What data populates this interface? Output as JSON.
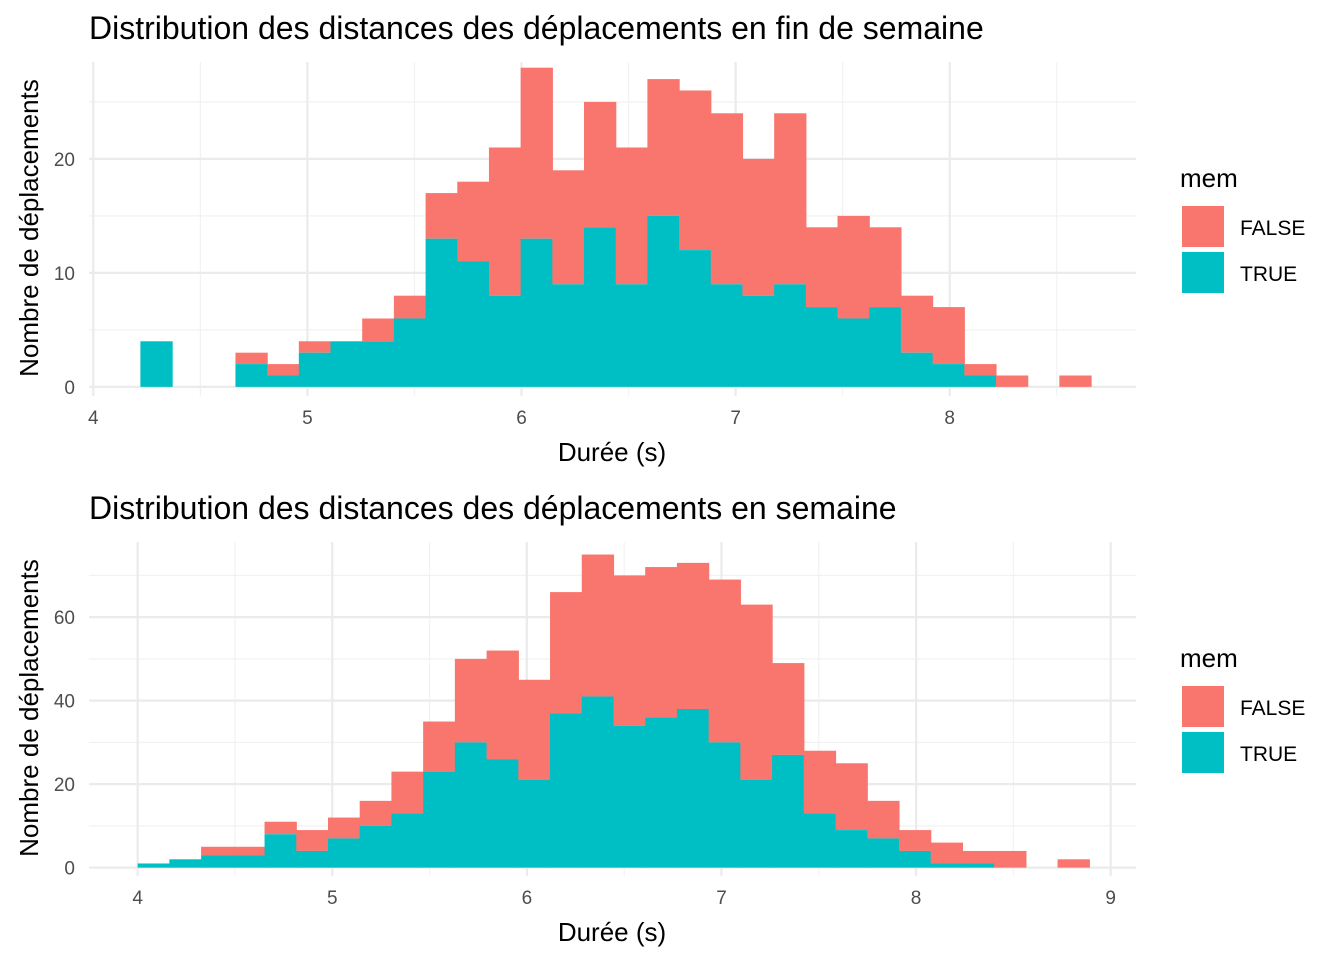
{
  "colors": {
    "FALSE": "#F8766D",
    "TRUE": "#00BFC4"
  },
  "chart_data": [
    {
      "type": "bar",
      "stacking": "stacked-histogram",
      "title": "Distribution des distances des déplacements en fin de semaine",
      "xlabel": "Durée (s)",
      "ylabel": "Nombre de déplacements",
      "xlim": [
        3.98,
        8.87
      ],
      "ylim": [
        -0.8,
        28.5
      ],
      "xticks": [
        "4",
        "5",
        "6",
        "7",
        "8"
      ],
      "xtick_values": [
        4,
        5,
        6,
        7,
        8
      ],
      "yticks": [
        "0",
        "10",
        "20"
      ],
      "ytick_values": [
        0,
        10,
        20
      ],
      "bin_width": 0.148,
      "bin_starts": [
        4.22,
        4.368,
        4.516,
        4.664,
        4.812,
        4.96,
        5.108,
        5.256,
        5.404,
        5.552,
        5.7,
        5.848,
        5.996,
        6.144,
        6.292,
        6.44,
        6.588,
        6.736,
        6.884,
        7.032,
        7.18,
        7.328,
        7.476,
        7.624,
        7.772,
        7.92,
        8.068,
        8.216,
        8.364,
        8.512
      ],
      "legend": {
        "title": "mem",
        "position": "right",
        "entries": [
          "FALSE",
          "TRUE"
        ]
      },
      "series": [
        {
          "name": "FALSE",
          "values": [
            0,
            0,
            0,
            1,
            1,
            1,
            0,
            2,
            2,
            4,
            7,
            13,
            15,
            10,
            11,
            12,
            12,
            14,
            15,
            12,
            15,
            7,
            9,
            7,
            5,
            5,
            1,
            1,
            0,
            1
          ]
        },
        {
          "name": "TRUE",
          "values": [
            4,
            0,
            0,
            2,
            1,
            3,
            4,
            4,
            6,
            13,
            11,
            8,
            13,
            9,
            14,
            9,
            15,
            12,
            9,
            8,
            9,
            7,
            6,
            7,
            3,
            2,
            1,
            0,
            0,
            0
          ]
        }
      ]
    },
    {
      "type": "bar",
      "stacking": "stacked-histogram",
      "title": "Distribution des distances des déplacements en semaine",
      "xlabel": "Durée (s)",
      "ylabel": "Nombre de déplacements",
      "xlim": [
        3.75,
        9.13
      ],
      "ylim": [
        -2,
        78
      ],
      "xticks": [
        "4",
        "5",
        "6",
        "7",
        "8",
        "9"
      ],
      "xtick_values": [
        4,
        5,
        6,
        7,
        8,
        9
      ],
      "yticks": [
        "0",
        "20",
        "40",
        "60"
      ],
      "ytick_values": [
        0,
        20,
        40,
        60
      ],
      "bin_width": 0.163,
      "bin_starts": [
        4.0,
        4.163,
        4.326,
        4.489,
        4.652,
        4.815,
        4.978,
        5.141,
        5.304,
        5.467,
        5.63,
        5.793,
        5.956,
        6.119,
        6.282,
        6.445,
        6.608,
        6.771,
        6.934,
        7.097,
        7.26,
        7.423,
        7.586,
        7.749,
        7.912,
        8.075,
        8.238,
        8.401,
        8.564,
        8.727
      ],
      "legend": {
        "title": "mem",
        "position": "right",
        "entries": [
          "FALSE",
          "TRUE"
        ]
      },
      "series": [
        {
          "name": "FALSE",
          "values": [
            0,
            0,
            2,
            2,
            3,
            5,
            5,
            6,
            10,
            12,
            20,
            26,
            24,
            29,
            34,
            36,
            36,
            35,
            39,
            42,
            22,
            15,
            16,
            9,
            5,
            5,
            3,
            4,
            0,
            2
          ]
        },
        {
          "name": "TRUE",
          "values": [
            1,
            2,
            3,
            3,
            8,
            4,
            7,
            10,
            13,
            23,
            30,
            26,
            21,
            37,
            41,
            34,
            36,
            38,
            30,
            21,
            27,
            13,
            9,
            7,
            4,
            1,
            1,
            0,
            0,
            0
          ]
        }
      ]
    }
  ]
}
